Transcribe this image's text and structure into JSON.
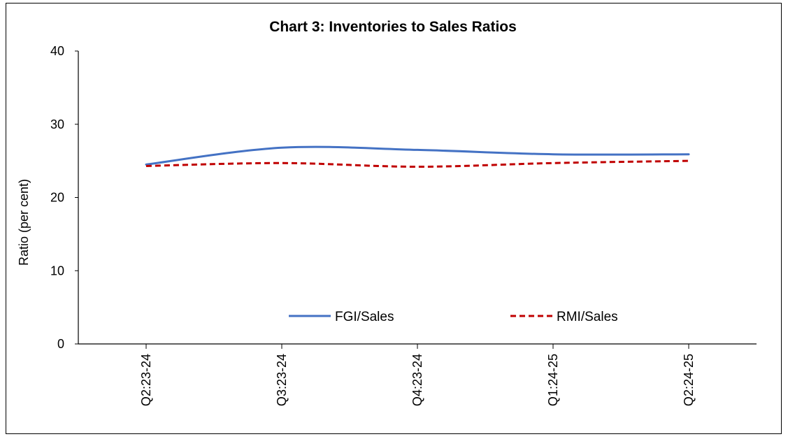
{
  "chart_data": {
    "type": "line",
    "title": "Chart 3: Inventories to Sales Ratios",
    "xlabel": "",
    "ylabel": "Ratio (per cent)",
    "categories": [
      "Q2:23-24",
      "Q3:23-24",
      "Q4:23-24",
      "Q1:24-25",
      "Q2:24-25"
    ],
    "ylim": [
      0,
      40
    ],
    "yticks": [
      0,
      10,
      20,
      30,
      40
    ],
    "grid": false,
    "legend_position": "bottom-center inside plot",
    "series": [
      {
        "name": "FGI/Sales",
        "values": [
          24.5,
          26.8,
          26.5,
          25.9,
          25.9
        ],
        "color": "#4472C4",
        "style": "solid"
      },
      {
        "name": "RMI/Sales",
        "values": [
          24.3,
          24.7,
          24.2,
          24.7,
          25.0
        ],
        "color": "#C00000",
        "style": "dashed"
      }
    ]
  }
}
